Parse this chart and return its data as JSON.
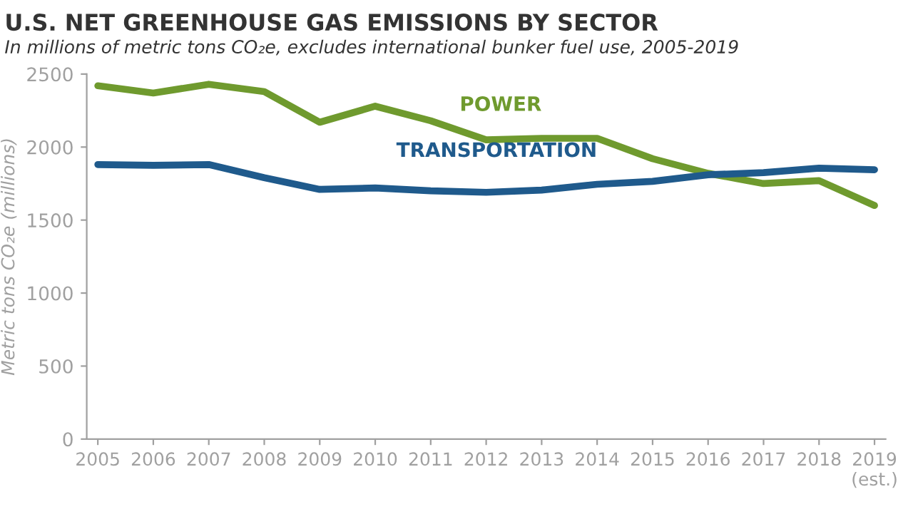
{
  "chart_data": {
    "type": "line",
    "title": "U.S. NET GREENHOUSE GAS EMISSIONS BY SECTOR",
    "subtitle": "In millions of metric tons CO₂e, excludes international bunker fuel use, 2005-2019",
    "ylabel": "Metric tons CO₂e (millions)",
    "categories": [
      "2005",
      "2006",
      "2007",
      "2008",
      "2009",
      "2010",
      "2011",
      "2012",
      "2013",
      "2014",
      "2015",
      "2016",
      "2017",
      "2018",
      "2019\n(est.)"
    ],
    "series": [
      {
        "name": "POWER",
        "color": "#6f9a2e",
        "values": [
          2420,
          2370,
          2430,
          2380,
          2170,
          2280,
          2180,
          2050,
          2060,
          2060,
          1920,
          1820,
          1750,
          1770,
          1600
        ]
      },
      {
        "name": "TRANSPORTATION",
        "color": "#1f5a8c",
        "values": [
          1880,
          1875,
          1880,
          1790,
          1710,
          1720,
          1700,
          1690,
          1705,
          1745,
          1765,
          1810,
          1825,
          1855,
          1845
        ]
      }
    ],
    "ylim": [
      0,
      2500
    ],
    "yticks": [
      0,
      500,
      1000,
      1500,
      2000,
      2500
    ],
    "grid": false,
    "legend": false,
    "marker": "none",
    "line_style": "solid"
  }
}
